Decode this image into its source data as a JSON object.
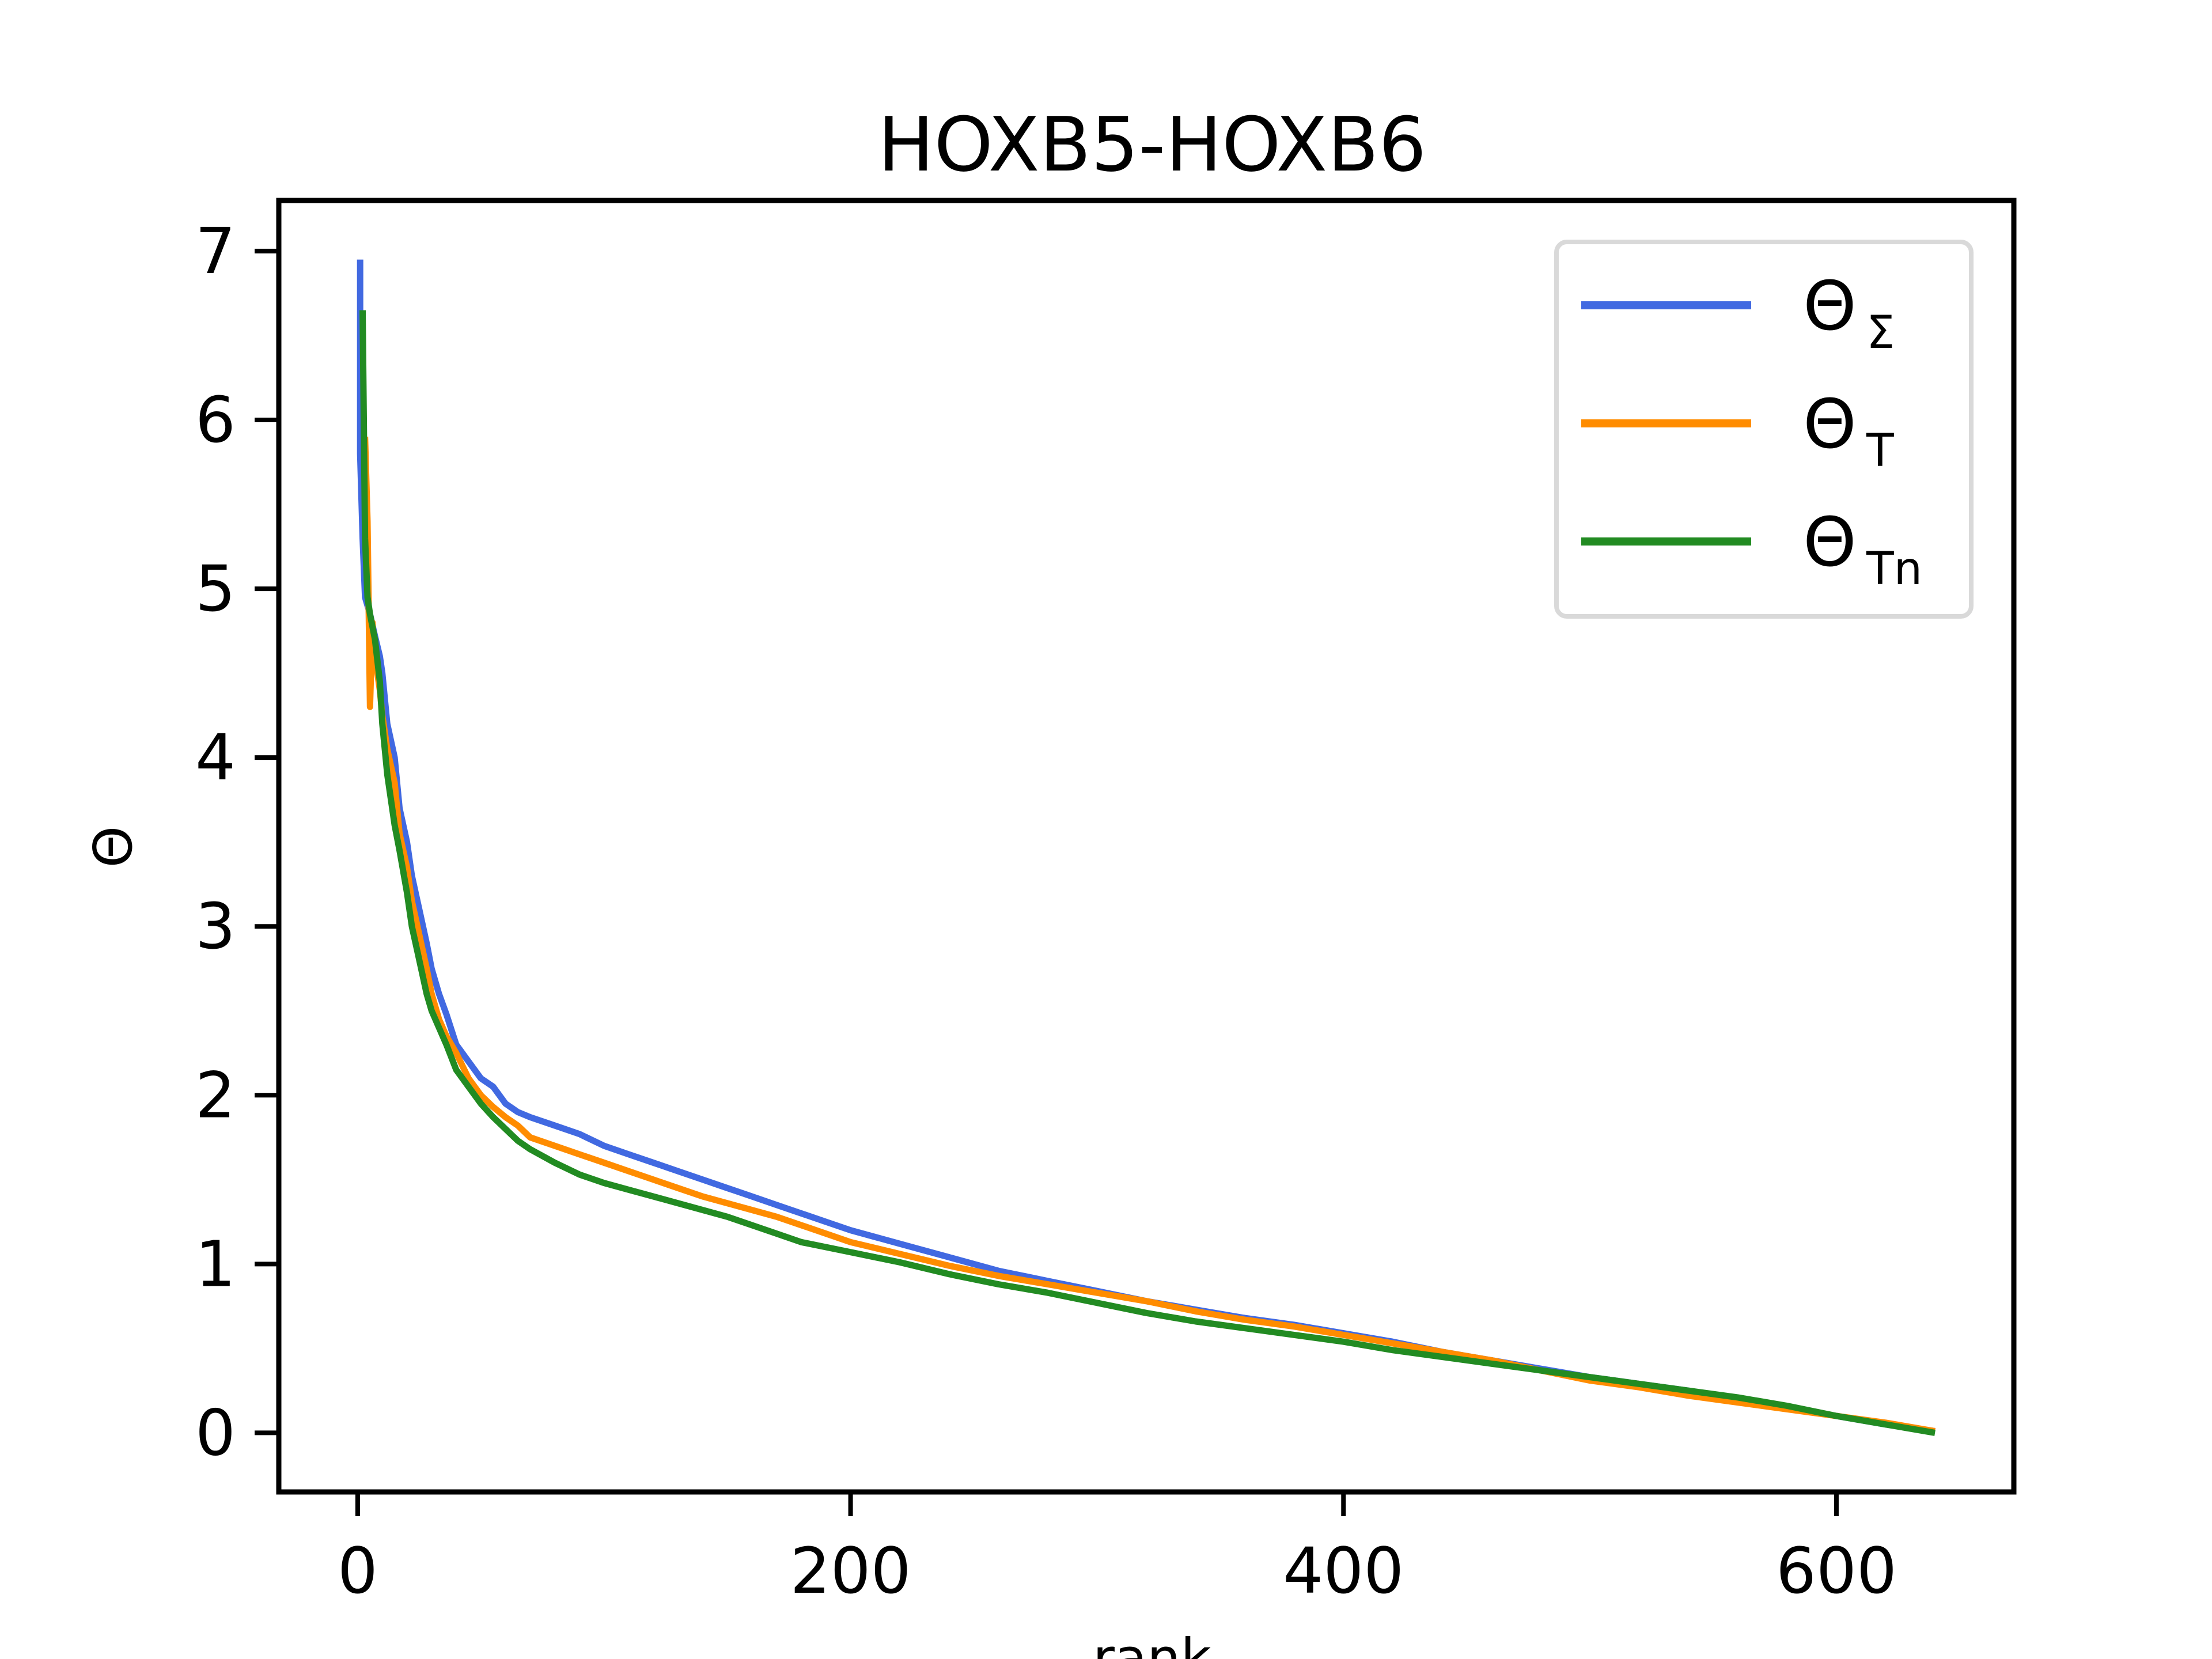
{
  "chart_data": {
    "type": "line",
    "title": "HOXB5-HOXB6",
    "xlabel": "rank",
    "ylabel": "Θ",
    "xlim": [
      -32,
      672
    ],
    "ylim": [
      -0.35,
      7.3
    ],
    "x_ticks": [
      0,
      200,
      400,
      600
    ],
    "y_ticks": [
      0,
      1,
      2,
      3,
      4,
      5,
      6,
      7
    ],
    "grid": false,
    "legend_position": "top-right",
    "series": [
      {
        "name": "Θ_Σ",
        "label_base": "Θ",
        "label_sub": "Σ",
        "color": "#4169e1",
        "x": [
          1,
          1,
          2,
          3,
          5,
          7,
          9,
          10,
          12,
          15,
          17,
          20,
          22,
          25,
          28,
          30,
          33,
          36,
          40,
          45,
          50,
          55,
          60,
          65,
          70,
          80,
          90,
          100,
          110,
          120,
          130,
          140,
          150,
          160,
          170,
          180,
          190,
          200,
          220,
          240,
          260,
          280,
          300,
          320,
          340,
          360,
          380,
          400,
          420,
          440,
          460,
          480,
          500,
          520,
          540,
          560,
          580,
          600,
          620,
          640
        ],
        "y": [
          6.95,
          5.8,
          5.3,
          4.95,
          4.85,
          4.72,
          4.6,
          4.5,
          4.2,
          4.0,
          3.7,
          3.5,
          3.3,
          3.1,
          2.9,
          2.75,
          2.6,
          2.48,
          2.3,
          2.2,
          2.1,
          2.05,
          1.95,
          1.9,
          1.87,
          1.82,
          1.77,
          1.7,
          1.65,
          1.6,
          1.55,
          1.5,
          1.45,
          1.4,
          1.35,
          1.3,
          1.25,
          1.2,
          1.12,
          1.04,
          0.96,
          0.9,
          0.84,
          0.78,
          0.73,
          0.68,
          0.64,
          0.59,
          0.54,
          0.48,
          0.43,
          0.38,
          0.33,
          0.29,
          0.25,
          0.2,
          0.15,
          0.1,
          0.05,
          0.01
        ]
      },
      {
        "name": "Θ_T",
        "label_base": "Θ",
        "label_sub": "T",
        "color": "#ff8c00",
        "x": [
          3,
          4,
          5,
          6,
          7,
          9,
          10,
          12,
          15,
          17,
          20,
          22,
          25,
          28,
          30,
          33,
          36,
          40,
          45,
          50,
          55,
          60,
          65,
          70,
          80,
          90,
          100,
          110,
          120,
          130,
          140,
          150,
          160,
          170,
          180,
          190,
          200,
          220,
          240,
          260,
          280,
          300,
          320,
          340,
          360,
          380,
          400,
          420,
          440,
          460,
          480,
          500,
          520,
          540,
          560,
          580,
          600,
          620,
          640
        ],
        "y": [
          5.9,
          5.4,
          4.3,
          4.8,
          4.6,
          4.4,
          4.25,
          4.05,
          3.85,
          3.55,
          3.35,
          3.15,
          2.95,
          2.75,
          2.6,
          2.45,
          2.35,
          2.25,
          2.1,
          2.0,
          1.93,
          1.87,
          1.82,
          1.75,
          1.7,
          1.65,
          1.6,
          1.55,
          1.5,
          1.45,
          1.4,
          1.36,
          1.32,
          1.28,
          1.23,
          1.18,
          1.13,
          1.06,
          0.99,
          0.93,
          0.88,
          0.83,
          0.78,
          0.72,
          0.67,
          0.63,
          0.58,
          0.53,
          0.48,
          0.43,
          0.37,
          0.31,
          0.27,
          0.22,
          0.18,
          0.14,
          0.1,
          0.06,
          0.01
        ]
      },
      {
        "name": "Θ_Tn",
        "label_base": "Θ",
        "label_sub": "Tn",
        "color": "#228b22",
        "x": [
          2,
          3,
          4,
          5,
          7,
          9,
          10,
          12,
          15,
          17,
          20,
          22,
          25,
          28,
          30,
          33,
          36,
          40,
          45,
          50,
          55,
          60,
          65,
          70,
          80,
          90,
          100,
          110,
          120,
          130,
          140,
          150,
          160,
          170,
          180,
          190,
          200,
          220,
          240,
          260,
          280,
          300,
          320,
          340,
          360,
          380,
          400,
          420,
          440,
          460,
          480,
          500,
          520,
          540,
          560,
          580,
          600,
          620,
          640
        ],
        "y": [
          6.65,
          5.3,
          4.95,
          4.85,
          4.7,
          4.45,
          4.2,
          3.9,
          3.6,
          3.45,
          3.2,
          3.0,
          2.8,
          2.6,
          2.5,
          2.4,
          2.3,
          2.15,
          2.05,
          1.95,
          1.87,
          1.8,
          1.73,
          1.68,
          1.6,
          1.53,
          1.48,
          1.44,
          1.4,
          1.36,
          1.32,
          1.28,
          1.23,
          1.18,
          1.13,
          1.1,
          1.07,
          1.01,
          0.94,
          0.88,
          0.83,
          0.77,
          0.71,
          0.66,
          0.62,
          0.58,
          0.54,
          0.49,
          0.45,
          0.41,
          0.37,
          0.33,
          0.29,
          0.25,
          0.21,
          0.16,
          0.1,
          0.05,
          0.0
        ]
      }
    ]
  }
}
